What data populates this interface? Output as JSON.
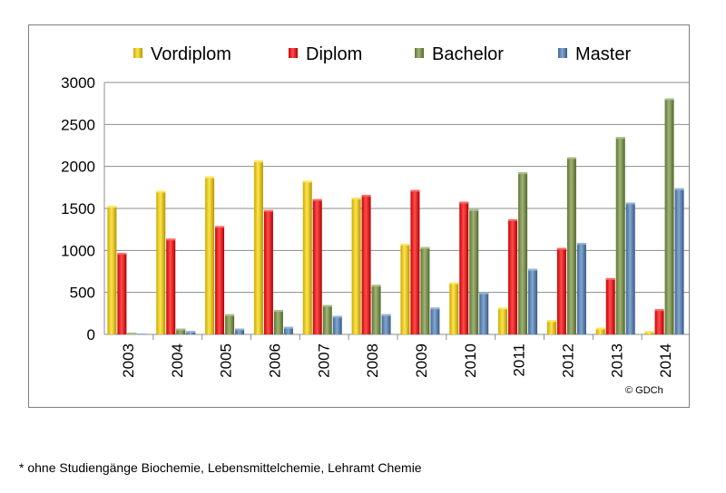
{
  "chart_data": {
    "type": "bar",
    "title": "",
    "xlabel": "",
    "ylabel": "",
    "categories": [
      "2003",
      "2004",
      "2005",
      "2006",
      "2007",
      "2008",
      "2009",
      "2010",
      "2011",
      "2012",
      "2013",
      "2014"
    ],
    "series": [
      {
        "name": "Vordiplom",
        "color": "#FFD700",
        "values": [
          1530,
          1710,
          1880,
          2070,
          1830,
          1630,
          1080,
          620,
          320,
          170,
          80,
          40
        ]
      },
      {
        "name": "Diplom",
        "color": "#FF0000",
        "values": [
          970,
          1140,
          1290,
          1480,
          1610,
          1660,
          1720,
          1580,
          1370,
          1030,
          670,
          300
        ]
      },
      {
        "name": "Bachelor",
        "color": "#77933C",
        "values": [
          20,
          70,
          240,
          290,
          350,
          590,
          1040,
          1490,
          1930,
          2110,
          2350,
          2810
        ]
      },
      {
        "name": "Master",
        "color": "#4F81BD",
        "values": [
          10,
          40,
          70,
          90,
          220,
          240,
          320,
          500,
          780,
          1090,
          1570,
          1740
        ]
      }
    ],
    "ylim": [
      0,
      3000
    ],
    "yticks": [
      0,
      500,
      1000,
      1500,
      2000,
      2500,
      3000
    ],
    "grid": true,
    "legend": "top",
    "copyright": "© GDCh"
  },
  "footnote": "* ohne Studiengänge Biochemie, Lebensmittelchemie, Lehramt Chemie"
}
